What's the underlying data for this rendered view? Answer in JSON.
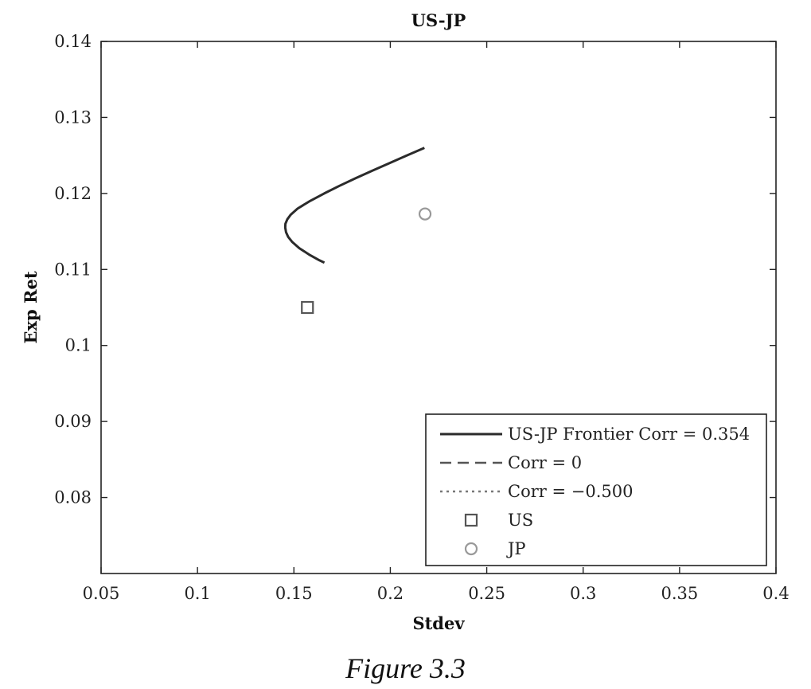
{
  "caption": "Figure 3.3",
  "chart_data": {
    "type": "line",
    "title": "US-JP",
    "xlabel": "Stdev",
    "ylabel": "Exp Ret",
    "xlim": [
      0.05,
      0.4
    ],
    "ylim": [
      0.07,
      0.14
    ],
    "xticks": [
      0.05,
      0.1,
      0.15,
      0.2,
      0.25,
      0.3,
      0.35,
      0.4
    ],
    "xtick_labels": [
      "0.05",
      "0.1",
      "0.15",
      "0.2",
      "0.25",
      "0.3",
      "0.35",
      "0.4"
    ],
    "yticks": [
      0.08,
      0.09,
      0.1,
      0.11,
      0.12,
      0.13,
      0.14
    ],
    "ytick_labels": [
      "0.08",
      "0.09",
      "0.1",
      "0.11",
      "0.12",
      "0.13",
      "0.14"
    ],
    "grid": false,
    "legend_position": "bottom-right",
    "series": [
      {
        "name": "US-JP Frontier Corr = 0.354",
        "style": "solid",
        "color": "#2b2b2b",
        "points": [
          [
            0.2177,
            0.126
          ],
          [
            0.2086,
            0.125
          ],
          [
            0.1996,
            0.124
          ],
          [
            0.1907,
            0.123
          ],
          [
            0.182,
            0.122
          ],
          [
            0.1736,
            0.121
          ],
          [
            0.1657,
            0.12
          ],
          [
            0.1583,
            0.119
          ],
          [
            0.1519,
            0.118
          ],
          [
            0.1483,
            0.1172
          ],
          [
            0.1466,
            0.1166
          ],
          [
            0.1456,
            0.116
          ],
          [
            0.1455,
            0.1155
          ],
          [
            0.1459,
            0.1149
          ],
          [
            0.147,
            0.1143
          ],
          [
            0.1492,
            0.1136
          ],
          [
            0.1528,
            0.1128
          ],
          [
            0.1583,
            0.1119
          ],
          [
            0.1632,
            0.1112
          ],
          [
            0.1658,
            0.1109
          ]
        ]
      },
      {
        "name": "Corr = 0",
        "style": "dashed",
        "color": "#555555",
        "points": []
      },
      {
        "name": "Corr = −0.500",
        "style": "dotted",
        "color": "#777777",
        "points": []
      }
    ],
    "markers": [
      {
        "name": "US",
        "shape": "square",
        "color": "#555555",
        "x": 0.157,
        "y": 0.105
      },
      {
        "name": "JP",
        "shape": "circle",
        "color": "#999999",
        "x": 0.218,
        "y": 0.1173
      }
    ]
  }
}
